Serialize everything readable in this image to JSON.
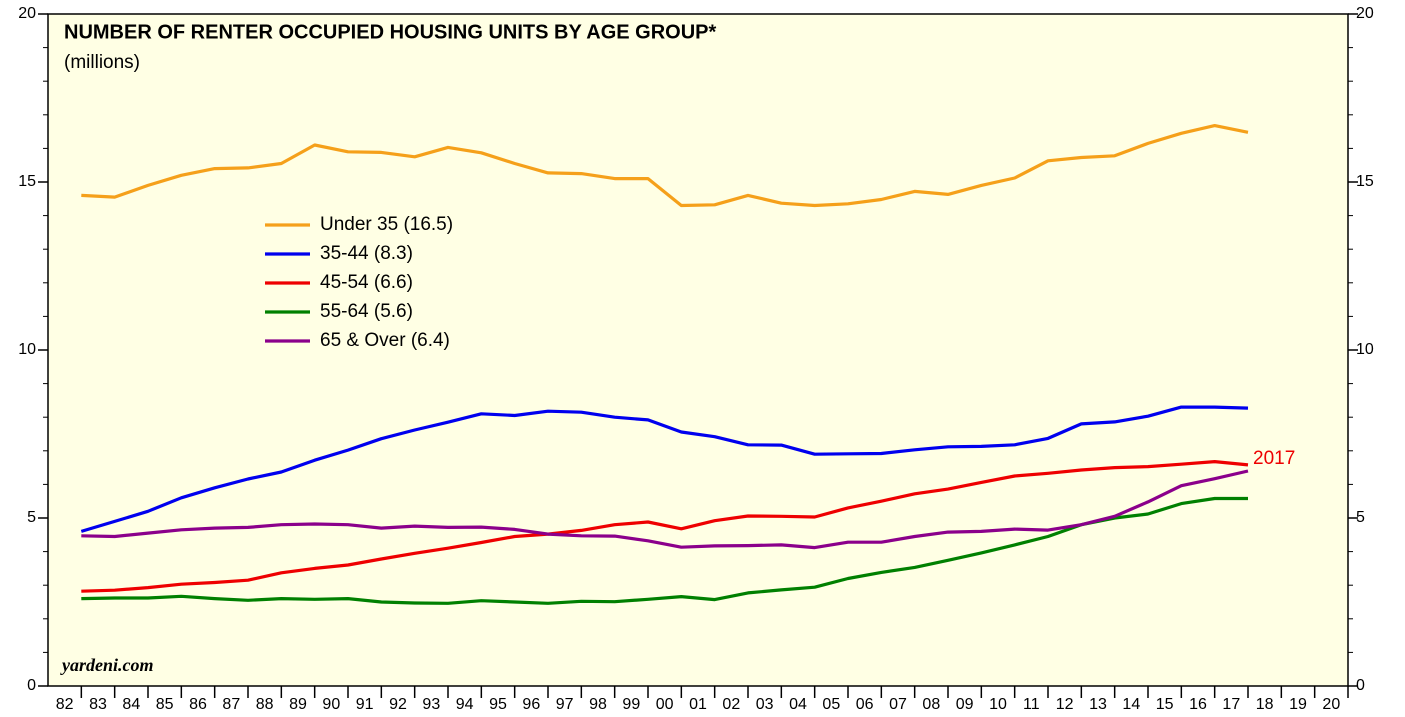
{
  "chart_data": {
    "type": "line",
    "title": "NUMBER OF RENTER OCCUPIED HOUSING UNITS BY AGE GROUP*",
    "subtitle": "(millions)",
    "source": "yardeni.com",
    "annotation": "2017",
    "x": [
      1982,
      1983,
      1984,
      1985,
      1986,
      1987,
      1988,
      1989,
      1990,
      1991,
      1992,
      1993,
      1994,
      1995,
      1996,
      1997,
      1998,
      1999,
      2000,
      2001,
      2002,
      2003,
      2004,
      2005,
      2006,
      2007,
      2008,
      2009,
      2010,
      2011,
      2012,
      2013,
      2014,
      2015,
      2016,
      2017
    ],
    "xlim": [
      1981,
      2020
    ],
    "xticks": [
      {
        "value": 1982,
        "label": "82"
      },
      {
        "value": 1983,
        "label": "83"
      },
      {
        "value": 1984,
        "label": "84"
      },
      {
        "value": 1985,
        "label": "85"
      },
      {
        "value": 1986,
        "label": "86"
      },
      {
        "value": 1987,
        "label": "87"
      },
      {
        "value": 1988,
        "label": "88"
      },
      {
        "value": 1989,
        "label": "89"
      },
      {
        "value": 1990,
        "label": "90"
      },
      {
        "value": 1991,
        "label": "91"
      },
      {
        "value": 1992,
        "label": "92"
      },
      {
        "value": 1993,
        "label": "93"
      },
      {
        "value": 1994,
        "label": "94"
      },
      {
        "value": 1995,
        "label": "95"
      },
      {
        "value": 1996,
        "label": "96"
      },
      {
        "value": 1997,
        "label": "97"
      },
      {
        "value": 1998,
        "label": "98"
      },
      {
        "value": 1999,
        "label": "99"
      },
      {
        "value": 2000,
        "label": "00"
      },
      {
        "value": 2001,
        "label": "01"
      },
      {
        "value": 2002,
        "label": "02"
      },
      {
        "value": 2003,
        "label": "03"
      },
      {
        "value": 2004,
        "label": "04"
      },
      {
        "value": 2005,
        "label": "05"
      },
      {
        "value": 2006,
        "label": "06"
      },
      {
        "value": 2007,
        "label": "07"
      },
      {
        "value": 2008,
        "label": "08"
      },
      {
        "value": 2009,
        "label": "09"
      },
      {
        "value": 2010,
        "label": "10"
      },
      {
        "value": 2011,
        "label": "11"
      },
      {
        "value": 2012,
        "label": "12"
      },
      {
        "value": 2013,
        "label": "13"
      },
      {
        "value": 2014,
        "label": "14"
      },
      {
        "value": 2015,
        "label": "15"
      },
      {
        "value": 2016,
        "label": "16"
      },
      {
        "value": 2017,
        "label": "17"
      },
      {
        "value": 2018,
        "label": "18"
      },
      {
        "value": 2019,
        "label": "19"
      },
      {
        "value": 2020,
        "label": "20"
      }
    ],
    "ylim": [
      0,
      20
    ],
    "yticks": [
      0,
      5,
      10,
      15,
      20
    ],
    "yminorticks": [
      1,
      2,
      3,
      4,
      6,
      7,
      8,
      9,
      11,
      12,
      13,
      14,
      16,
      17,
      18,
      19
    ],
    "y2lim": [
      0,
      20
    ],
    "y2ticks": [
      0,
      5,
      10,
      15,
      20
    ],
    "series": [
      {
        "name": "Under 35 (16.5)",
        "color": "#f5a01a",
        "values": [
          14.6,
          14.55,
          14.9,
          15.2,
          15.4,
          15.42,
          15.55,
          16.1,
          15.9,
          15.88,
          15.75,
          16.03,
          15.87,
          15.55,
          15.27,
          15.25,
          15.1,
          15.1,
          14.3,
          14.32,
          14.6,
          14.37,
          14.3,
          14.35,
          14.48,
          14.72,
          14.63,
          14.9,
          15.12,
          15.63,
          15.73,
          15.78,
          16.15,
          16.45,
          16.68,
          16.48
        ]
      },
      {
        "name": "35-44 (8.3)",
        "color": "#0000ee",
        "values": [
          4.6,
          4.9,
          5.2,
          5.6,
          5.9,
          6.16,
          6.37,
          6.72,
          7.02,
          7.36,
          7.62,
          7.85,
          8.1,
          8.05,
          8.18,
          8.15,
          8.0,
          7.92,
          7.56,
          7.42,
          7.18,
          7.17,
          6.9,
          6.91,
          6.92,
          7.03,
          7.12,
          7.13,
          7.18,
          7.37,
          7.8,
          7.86,
          8.03,
          8.3,
          8.3,
          8.27
        ]
      },
      {
        "name": "45-54 (6.6)",
        "color": "#ee0000",
        "values": [
          2.82,
          2.85,
          2.93,
          3.03,
          3.08,
          3.15,
          3.37,
          3.5,
          3.6,
          3.78,
          3.95,
          4.1,
          4.27,
          4.45,
          4.52,
          4.63,
          4.8,
          4.88,
          4.68,
          4.92,
          5.06,
          5.05,
          5.03,
          5.3,
          5.5,
          5.72,
          5.86,
          6.06,
          6.25,
          6.33,
          6.43,
          6.5,
          6.53,
          6.6,
          6.68,
          6.58
        ]
      },
      {
        "name": "55-64 (5.6)",
        "color": "#008000",
        "values": [
          2.6,
          2.62,
          2.62,
          2.67,
          2.6,
          2.55,
          2.6,
          2.58,
          2.6,
          2.5,
          2.47,
          2.46,
          2.54,
          2.5,
          2.46,
          2.52,
          2.51,
          2.58,
          2.66,
          2.57,
          2.77,
          2.86,
          2.94,
          3.2,
          3.38,
          3.53,
          3.74,
          3.96,
          4.2,
          4.45,
          4.8,
          5.0,
          5.12,
          5.43,
          5.58,
          5.58
        ]
      },
      {
        "name": "65 & Over (6.4)",
        "color": "#8b008b",
        "values": [
          4.47,
          4.45,
          4.55,
          4.65,
          4.7,
          4.72,
          4.8,
          4.82,
          4.8,
          4.7,
          4.76,
          4.72,
          4.73,
          4.66,
          4.52,
          4.47,
          4.46,
          4.32,
          4.13,
          4.17,
          4.18,
          4.2,
          4.12,
          4.28,
          4.28,
          4.45,
          4.58,
          4.6,
          4.67,
          4.64,
          4.8,
          5.05,
          5.48,
          5.96,
          6.17,
          6.4
        ]
      }
    ],
    "annotation_color": "#ee0000"
  }
}
